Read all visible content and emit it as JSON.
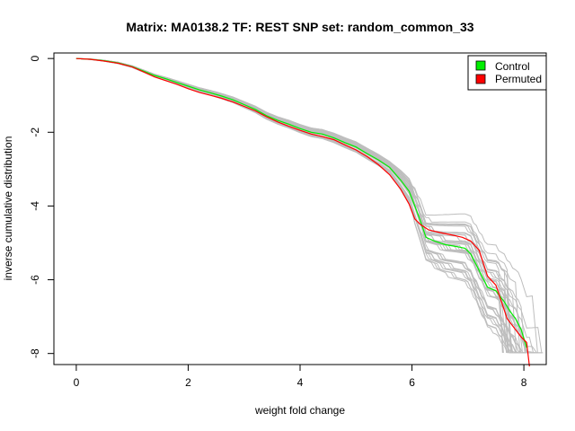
{
  "chart_data": {
    "type": "line",
    "title": "Matrix: MA0138.2 TF: REST SNP set: random_common_33",
    "xlabel": "weight fold change",
    "ylabel": "inverse cumulative distribution",
    "xlim": [
      -0.4,
      8.4
    ],
    "ylim": [
      -8.3,
      0.15
    ],
    "xticks": [
      0,
      2,
      4,
      6,
      8
    ],
    "yticks": [
      0,
      -2,
      -4,
      -6,
      -8
    ],
    "grid": false,
    "legend_position": "top-right",
    "legend": [
      {
        "label": "Control",
        "color": "#00ee00"
      },
      {
        "label": "Permuted",
        "color": "#ff0000"
      }
    ],
    "background_series": {
      "color": "#bebebe",
      "count": 40,
      "description_values": "permutation replicates spread around the control curve"
    },
    "series": [
      {
        "name": "Control",
        "color": "#00ee00",
        "x": [
          0,
          0.25,
          0.5,
          0.75,
          1.0,
          1.2,
          1.4,
          1.6,
          1.8,
          2.0,
          2.2,
          2.4,
          2.6,
          2.8,
          3.0,
          3.2,
          3.4,
          3.6,
          3.8,
          4.0,
          4.2,
          4.4,
          4.6,
          4.8,
          5.0,
          5.2,
          5.4,
          5.6,
          5.8,
          5.95,
          6.05,
          6.15,
          6.25,
          6.4,
          6.6,
          6.8,
          6.95,
          7.05,
          7.2,
          7.35,
          7.5,
          7.65,
          7.75,
          7.85,
          7.95,
          8.05
        ],
        "y": [
          0,
          -0.02,
          -0.06,
          -0.12,
          -0.22,
          -0.34,
          -0.46,
          -0.55,
          -0.65,
          -0.75,
          -0.85,
          -0.93,
          -1.02,
          -1.12,
          -1.25,
          -1.38,
          -1.55,
          -1.68,
          -1.78,
          -1.9,
          -2.0,
          -2.05,
          -2.15,
          -2.28,
          -2.4,
          -2.58,
          -2.75,
          -2.95,
          -3.3,
          -3.6,
          -4.0,
          -4.4,
          -4.85,
          -4.95,
          -5.05,
          -5.1,
          -5.15,
          -5.3,
          -5.75,
          -6.2,
          -6.3,
          -6.6,
          -6.85,
          -7.05,
          -7.35,
          -7.85
        ]
      },
      {
        "name": "Permuted",
        "color": "#ff0000",
        "x": [
          0,
          0.25,
          0.5,
          0.75,
          1.0,
          1.2,
          1.4,
          1.6,
          1.8,
          2.0,
          2.2,
          2.4,
          2.6,
          2.8,
          3.0,
          3.2,
          3.4,
          3.6,
          3.8,
          4.0,
          4.2,
          4.4,
          4.6,
          4.8,
          5.0,
          5.2,
          5.4,
          5.6,
          5.8,
          5.95,
          6.05,
          6.15,
          6.3,
          6.5,
          6.7,
          6.9,
          7.05,
          7.2,
          7.35,
          7.5,
          7.6,
          7.7,
          7.8,
          7.95,
          8.05,
          8.1
        ],
        "y": [
          0,
          -0.02,
          -0.07,
          -0.13,
          -0.23,
          -0.36,
          -0.5,
          -0.6,
          -0.7,
          -0.82,
          -0.92,
          -1.0,
          -1.08,
          -1.18,
          -1.3,
          -1.42,
          -1.58,
          -1.72,
          -1.84,
          -1.95,
          -2.05,
          -2.12,
          -2.2,
          -2.34,
          -2.48,
          -2.66,
          -2.88,
          -3.15,
          -3.55,
          -3.95,
          -4.35,
          -4.5,
          -4.65,
          -4.72,
          -4.78,
          -4.85,
          -4.95,
          -5.2,
          -5.9,
          -6.15,
          -6.6,
          -7.05,
          -7.25,
          -7.55,
          -7.7,
          -8.35
        ]
      }
    ]
  }
}
